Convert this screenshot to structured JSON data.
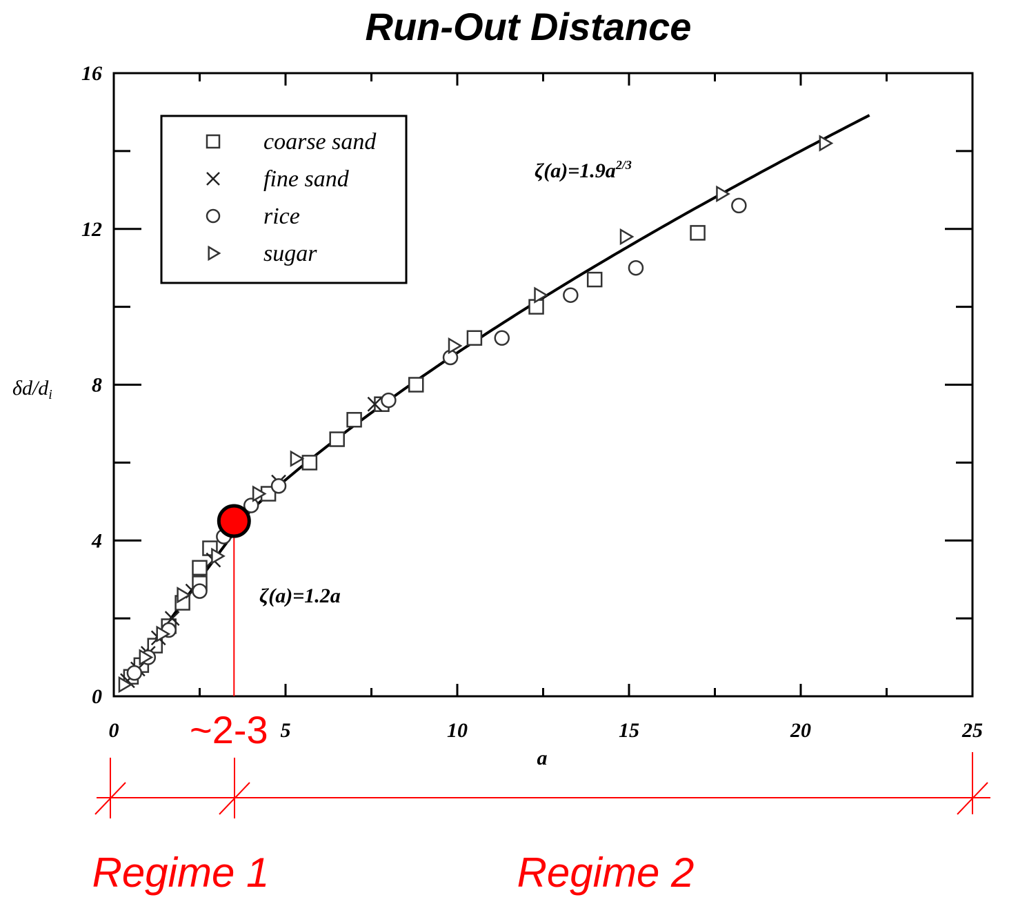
{
  "chart_data": {
    "type": "scatter",
    "title": "Run-Out Distance",
    "xlabel": "a",
    "ylabel": "δd/d",
    "ylabel_sub": "i",
    "xlim": [
      0,
      25
    ],
    "ylim": [
      0,
      16
    ],
    "xticks": [
      0,
      5,
      10,
      15,
      20,
      25
    ],
    "xtick_labels": [
      "0",
      "5",
      "10",
      "15",
      "20",
      "25"
    ],
    "yticks": [
      0,
      4,
      8,
      12,
      16
    ],
    "ytick_labels": [
      "0",
      "4",
      "8",
      "12",
      "16"
    ],
    "grid": false,
    "legend_position": "top-left",
    "series": [
      {
        "name": "coarse sand",
        "marker": "square",
        "points": [
          [
            0.5,
            0.5
          ],
          [
            0.8,
            0.8
          ],
          [
            1.2,
            1.3
          ],
          [
            1.6,
            1.8
          ],
          [
            2.0,
            2.4
          ],
          [
            2.5,
            2.9
          ],
          [
            2.5,
            3.3
          ],
          [
            2.8,
            3.8
          ],
          [
            4.5,
            5.2
          ],
          [
            5.7,
            6.0
          ],
          [
            6.5,
            6.6
          ],
          [
            7.0,
            7.1
          ],
          [
            7.8,
            7.5
          ],
          [
            8.8,
            8.0
          ],
          [
            10.5,
            9.2
          ],
          [
            12.3,
            10.0
          ],
          [
            14.0,
            10.7
          ],
          [
            17.0,
            11.9
          ]
        ]
      },
      {
        "name": "fine sand",
        "marker": "x",
        "points": [
          [
            0.4,
            0.4
          ],
          [
            0.7,
            0.7
          ],
          [
            1.0,
            1.1
          ],
          [
            1.3,
            1.5
          ],
          [
            1.7,
            2.0
          ],
          [
            2.3,
            2.7
          ],
          [
            2.9,
            3.5
          ],
          [
            4.8,
            5.5
          ],
          [
            7.6,
            7.5
          ]
        ]
      },
      {
        "name": "rice",
        "marker": "circle",
        "points": [
          [
            0.6,
            0.6
          ],
          [
            1.0,
            1.0
          ],
          [
            1.6,
            1.7
          ],
          [
            2.5,
            2.7
          ],
          [
            3.2,
            4.1
          ],
          [
            4.0,
            4.9
          ],
          [
            4.8,
            5.4
          ],
          [
            8.0,
            7.6
          ],
          [
            9.8,
            8.7
          ],
          [
            11.3,
            9.2
          ],
          [
            13.3,
            10.3
          ],
          [
            15.2,
            11.0
          ],
          [
            18.2,
            12.6
          ]
        ]
      },
      {
        "name": "sugar",
        "marker": "triangle-right",
        "points": [
          [
            0.3,
            0.3
          ],
          [
            0.9,
            1.0
          ],
          [
            1.4,
            1.6
          ],
          [
            2.0,
            2.6
          ],
          [
            3.0,
            3.6
          ],
          [
            4.2,
            5.2
          ],
          [
            5.3,
            6.1
          ],
          [
            9.9,
            9.0
          ],
          [
            12.4,
            10.3
          ],
          [
            14.9,
            11.8
          ],
          [
            17.7,
            12.9
          ],
          [
            20.7,
            14.2
          ]
        ]
      }
    ],
    "curve": {
      "equation_prefix": "ζ(a)=1.9a",
      "equation_exponent": "2/3",
      "coefficient": 1.9,
      "exponent": 0.6667,
      "x_range": [
        0.3,
        22
      ]
    },
    "linear_label": "ζ(a)=1.2a",
    "annotations": {
      "transition_label": "~2-3",
      "transition_x": 3.5,
      "transition_y": 4.5,
      "regimes": [
        "Regime 1",
        "Regime 2"
      ],
      "color": "#ff0000"
    }
  }
}
